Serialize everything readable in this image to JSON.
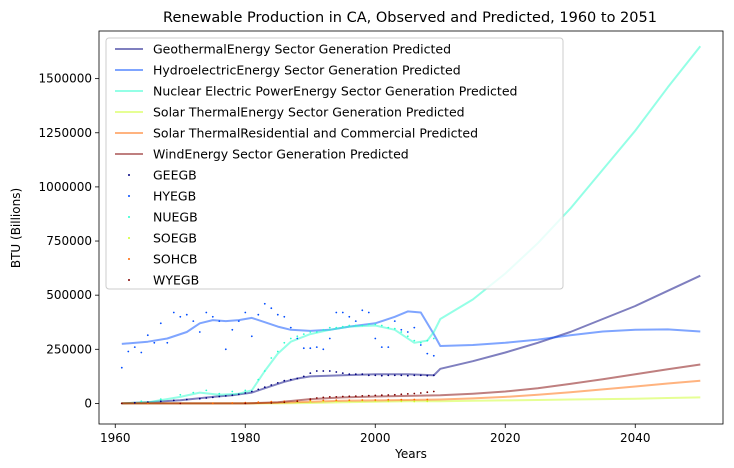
{
  "chart_data": {
    "type": "line",
    "title": "Renewable Production in CA, Observed and Predicted, 1960 to 2051",
    "xlabel": "Years",
    "ylabel": "BTU (Billions)",
    "xlim": [
      1957.5,
      1953.5
    ],
    "ylim": [
      -95000,
      1720000
    ],
    "xticks": [
      1960,
      1980,
      2000,
      2020,
      2040
    ],
    "yticks": [
      0,
      250000,
      500000,
      750000,
      1000000,
      1250000,
      1500000
    ],
    "grid": false,
    "legend_position": "upper-left",
    "series": [
      {
        "name": "GeothermalEnergy Sector Generation Predicted",
        "kind": "line",
        "color": "#00007f",
        "opacity": 0.5,
        "x": [
          1961,
          1965,
          1970,
          1975,
          1978,
          1981,
          1984,
          1986,
          1988,
          1990,
          1995,
          2000,
          2005,
          2009,
          2010,
          2015,
          2020,
          2025,
          2030,
          2035,
          2040,
          2045,
          2050
        ],
        "y": [
          0,
          5000,
          15000,
          30000,
          38000,
          50000,
          80000,
          100000,
          115000,
          125000,
          130000,
          135000,
          135000,
          130000,
          160000,
          195000,
          235000,
          280000,
          330000,
          390000,
          450000,
          520000,
          590000
        ]
      },
      {
        "name": "HydroelectricEnergy Sector Generation Predicted",
        "kind": "line",
        "color": "#004cff",
        "opacity": 0.5,
        "x": [
          1961,
          1965,
          1968,
          1971,
          1973,
          1975,
          1977,
          1979,
          1981,
          1983,
          1985,
          1987,
          1990,
          1993,
          1996,
          2000,
          2003,
          2005,
          2007,
          2009,
          2010,
          2015,
          2020,
          2025,
          2030,
          2035,
          2040,
          2045,
          2050
        ],
        "y": [
          275000,
          285000,
          300000,
          330000,
          370000,
          385000,
          380000,
          385000,
          395000,
          375000,
          355000,
          340000,
          335000,
          340000,
          355000,
          370000,
          400000,
          425000,
          420000,
          320000,
          265000,
          270000,
          280000,
          295000,
          315000,
          332000,
          340000,
          342000,
          332000
        ]
      },
      {
        "name": "Nuclear Electric PowerEnergy Sector Generation Predicted",
        "kind": "line",
        "color": "#29ffce",
        "opacity": 0.5,
        "x": [
          1961,
          1965,
          1970,
          1973,
          1976,
          1979,
          1981,
          1983,
          1985,
          1987,
          1990,
          1993,
          1996,
          2000,
          2003,
          2006,
          2008,
          2009,
          2010,
          2015,
          2020,
          2025,
          2030,
          2035,
          2040,
          2045,
          2050
        ],
        "y": [
          0,
          5000,
          30000,
          50000,
          40000,
          45000,
          60000,
          150000,
          230000,
          285000,
          320000,
          340000,
          355000,
          360000,
          340000,
          280000,
          290000,
          330000,
          390000,
          480000,
          600000,
          740000,
          900000,
          1080000,
          1260000,
          1460000,
          1650000
        ]
      },
      {
        "name": "Solar ThermalEnergy Sector Generation Predicted",
        "kind": "line",
        "color": "#ceff29",
        "opacity": 0.5,
        "x": [
          1961,
          1985,
          1990,
          1995,
          2000,
          2005,
          2010,
          2015,
          2020,
          2025,
          2030,
          2035,
          2040,
          2045,
          2050
        ],
        "y": [
          0,
          0,
          2000,
          5000,
          8000,
          10000,
          10000,
          12000,
          14000,
          16000,
          18000,
          20000,
          22000,
          25000,
          28000
        ]
      },
      {
        "name": "Solar ThermalResidential and Commercial Predicted",
        "kind": "line",
        "color": "#ff6800",
        "opacity": 0.5,
        "x": [
          1961,
          1980,
          1985,
          1990,
          1995,
          2000,
          2005,
          2010,
          2015,
          2020,
          2025,
          2030,
          2035,
          2040,
          2045,
          2050
        ],
        "y": [
          0,
          0,
          3000,
          8000,
          12000,
          14000,
          16000,
          18000,
          23000,
          30000,
          40000,
          52000,
          65000,
          78000,
          92000,
          105000
        ]
      },
      {
        "name": "WindEnergy Sector Generation Predicted",
        "kind": "line",
        "color": "#7f0000",
        "opacity": 0.5,
        "x": [
          1961,
          1980,
          1985,
          1990,
          1995,
          2000,
          2005,
          2010,
          2015,
          2020,
          2025,
          2030,
          2035,
          2040,
          2045,
          2050
        ],
        "y": [
          0,
          0,
          5000,
          20000,
          28000,
          32000,
          35000,
          38000,
          45000,
          55000,
          70000,
          90000,
          112000,
          135000,
          158000,
          180000
        ]
      },
      {
        "name": "GEEGB",
        "kind": "scatter",
        "color": "#00007f",
        "x": [
          1961,
          1963,
          1965,
          1967,
          1969,
          1971,
          1973,
          1974,
          1975,
          1976,
          1977,
          1978,
          1979,
          1980,
          1981,
          1982,
          1983,
          1984,
          1985,
          1986,
          1987,
          1988,
          1989,
          1990,
          1991,
          1992,
          1993,
          1994,
          1995,
          1996,
          1997,
          1998,
          1999,
          2000,
          2001,
          2002,
          2003,
          2004,
          2005,
          2006,
          2007,
          2008,
          2009
        ],
        "y": [
          0,
          3000,
          6000,
          10000,
          14000,
          18000,
          22000,
          25000,
          28000,
          32000,
          35000,
          38000,
          42000,
          48000,
          55000,
          65000,
          75000,
          85000,
          95000,
          105000,
          110000,
          115000,
          125000,
          140000,
          150000,
          150000,
          150000,
          145000,
          140000,
          135000,
          135000,
          135000,
          130000,
          130000,
          128000,
          130000,
          130000,
          130000,
          128000,
          130000,
          130000,
          128000,
          130000
        ]
      },
      {
        "name": "HYEGB",
        "kind": "scatter",
        "color": "#004cff",
        "x": [
          1961,
          1962,
          1963,
          1964,
          1965,
          1966,
          1967,
          1968,
          1969,
          1970,
          1971,
          1972,
          1973,
          1974,
          1975,
          1976,
          1977,
          1978,
          1979,
          1980,
          1981,
          1982,
          1983,
          1984,
          1985,
          1986,
          1987,
          1988,
          1989,
          1990,
          1991,
          1992,
          1993,
          1994,
          1995,
          1996,
          1997,
          1998,
          1999,
          2000,
          2001,
          2002,
          2003,
          2004,
          2005,
          2006,
          2007,
          2008,
          2009
        ],
        "y": [
          165000,
          240000,
          260000,
          235000,
          315000,
          280000,
          370000,
          280000,
          420000,
          400000,
          410000,
          380000,
          330000,
          420000,
          400000,
          380000,
          250000,
          340000,
          380000,
          420000,
          310000,
          410000,
          460000,
          440000,
          410000,
          400000,
          350000,
          300000,
          255000,
          255000,
          260000,
          250000,
          300000,
          420000,
          420000,
          400000,
          380000,
          430000,
          420000,
          300000,
          260000,
          260000,
          380000,
          340000,
          330000,
          350000,
          270000,
          230000,
          220000
        ]
      },
      {
        "name": "NUEGB",
        "kind": "scatter",
        "color": "#29ffce",
        "x": [
          1961,
          1964,
          1967,
          1970,
          1972,
          1974,
          1976,
          1978,
          1980,
          1982,
          1983,
          1984,
          1985,
          1986,
          1987,
          1988,
          1989,
          1990,
          1991,
          1992,
          1993,
          1994,
          1995,
          1996,
          1997,
          1998,
          1999,
          2000,
          2001,
          2002,
          2003,
          2004,
          2005,
          2006,
          2007,
          2008,
          2009
        ],
        "y": [
          0,
          10000,
          20000,
          40000,
          50000,
          60000,
          45000,
          55000,
          60000,
          110000,
          150000,
          210000,
          240000,
          280000,
          300000,
          310000,
          320000,
          330000,
          330000,
          340000,
          350000,
          350000,
          355000,
          360000,
          360000,
          360000,
          365000,
          365000,
          360000,
          350000,
          345000,
          330000,
          310000,
          290000,
          280000,
          290000,
          300000
        ]
      },
      {
        "name": "SOEGB",
        "kind": "scatter",
        "color": "#ceff29",
        "x": [
          1984,
          1986,
          1988,
          1990,
          1992,
          1994,
          1996,
          1998,
          2000,
          2002,
          2004,
          2006,
          2008
        ],
        "y": [
          2000,
          4000,
          6000,
          8000,
          9000,
          10000,
          10000,
          11000,
          11000,
          10000,
          10000,
          9000,
          10000
        ]
      },
      {
        "name": "SOHCB",
        "kind": "scatter",
        "color": "#ff6800",
        "x": [
          1961,
          1965,
          1970,
          1975,
          1978,
          1980,
          1982,
          1984,
          1986,
          1988,
          1990,
          1992,
          1994,
          1996,
          1998,
          2000,
          2002,
          2004,
          2006,
          2008
        ],
        "y": [
          0,
          0,
          0,
          0,
          2000,
          4000,
          6000,
          8000,
          10000,
          12000,
          14000,
          14000,
          15000,
          15000,
          16000,
          16000,
          17000,
          17000,
          18000,
          18000
        ]
      },
      {
        "name": "WYEGB",
        "kind": "scatter",
        "color": "#7f0000",
        "x": [
          1961,
          1970,
          1980,
          1984,
          1986,
          1988,
          1990,
          1991,
          1992,
          1993,
          1994,
          1995,
          1996,
          1997,
          1998,
          1999,
          2000,
          2001,
          2002,
          2003,
          2004,
          2005,
          2006,
          2007,
          2008,
          2009
        ],
        "y": [
          0,
          0,
          0,
          2000,
          5000,
          10000,
          20000,
          25000,
          28000,
          30000,
          30000,
          32000,
          33000,
          34000,
          35000,
          36000,
          37000,
          38000,
          39000,
          40000,
          42000,
          44000,
          46000,
          48000,
          52000,
          55000
        ]
      }
    ]
  }
}
